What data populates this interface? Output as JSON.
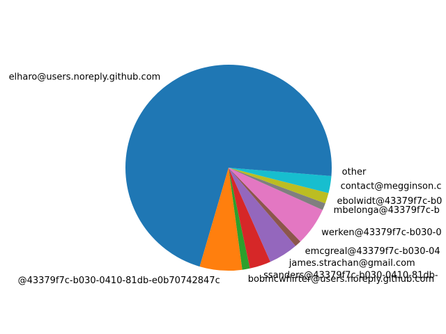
{
  "chart_data": {
    "type": "pie",
    "title": "",
    "labels": [
      "elharo@users.noreply.github.com",
      "@43379f7c-b030-0410-81db-e0b70742847c",
      "bobmcwhirter@users.noreply.github.com",
      "ssanders@43379f7c-b030-0410-81db-",
      "james.strachan@gmail.com",
      "emcgreal@43379f7c-b030-04",
      "werken@43379f7c-b030-0",
      "mbelonga@43379f7c-b",
      "ebolwidt@43379f7c-b0",
      "contact@megginson.c",
      "other"
    ],
    "values": [
      76.4,
      7.2,
      1.3,
      3.6,
      5.0,
      1.1,
      6.5,
      1.2,
      1.8,
      2.9,
      1.4
    ],
    "colors": [
      "#1f77b4",
      "#ff7f0e",
      "#2ca02c",
      "#d62728",
      "#9467bd",
      "#8c564b",
      "#e377c2",
      "#7f7f7f",
      "#bcbd22",
      "#17becf",
      "#1f77b4"
    ],
    "start_angle_deg": 0,
    "direction": "counterclockwise",
    "legend": "none"
  }
}
